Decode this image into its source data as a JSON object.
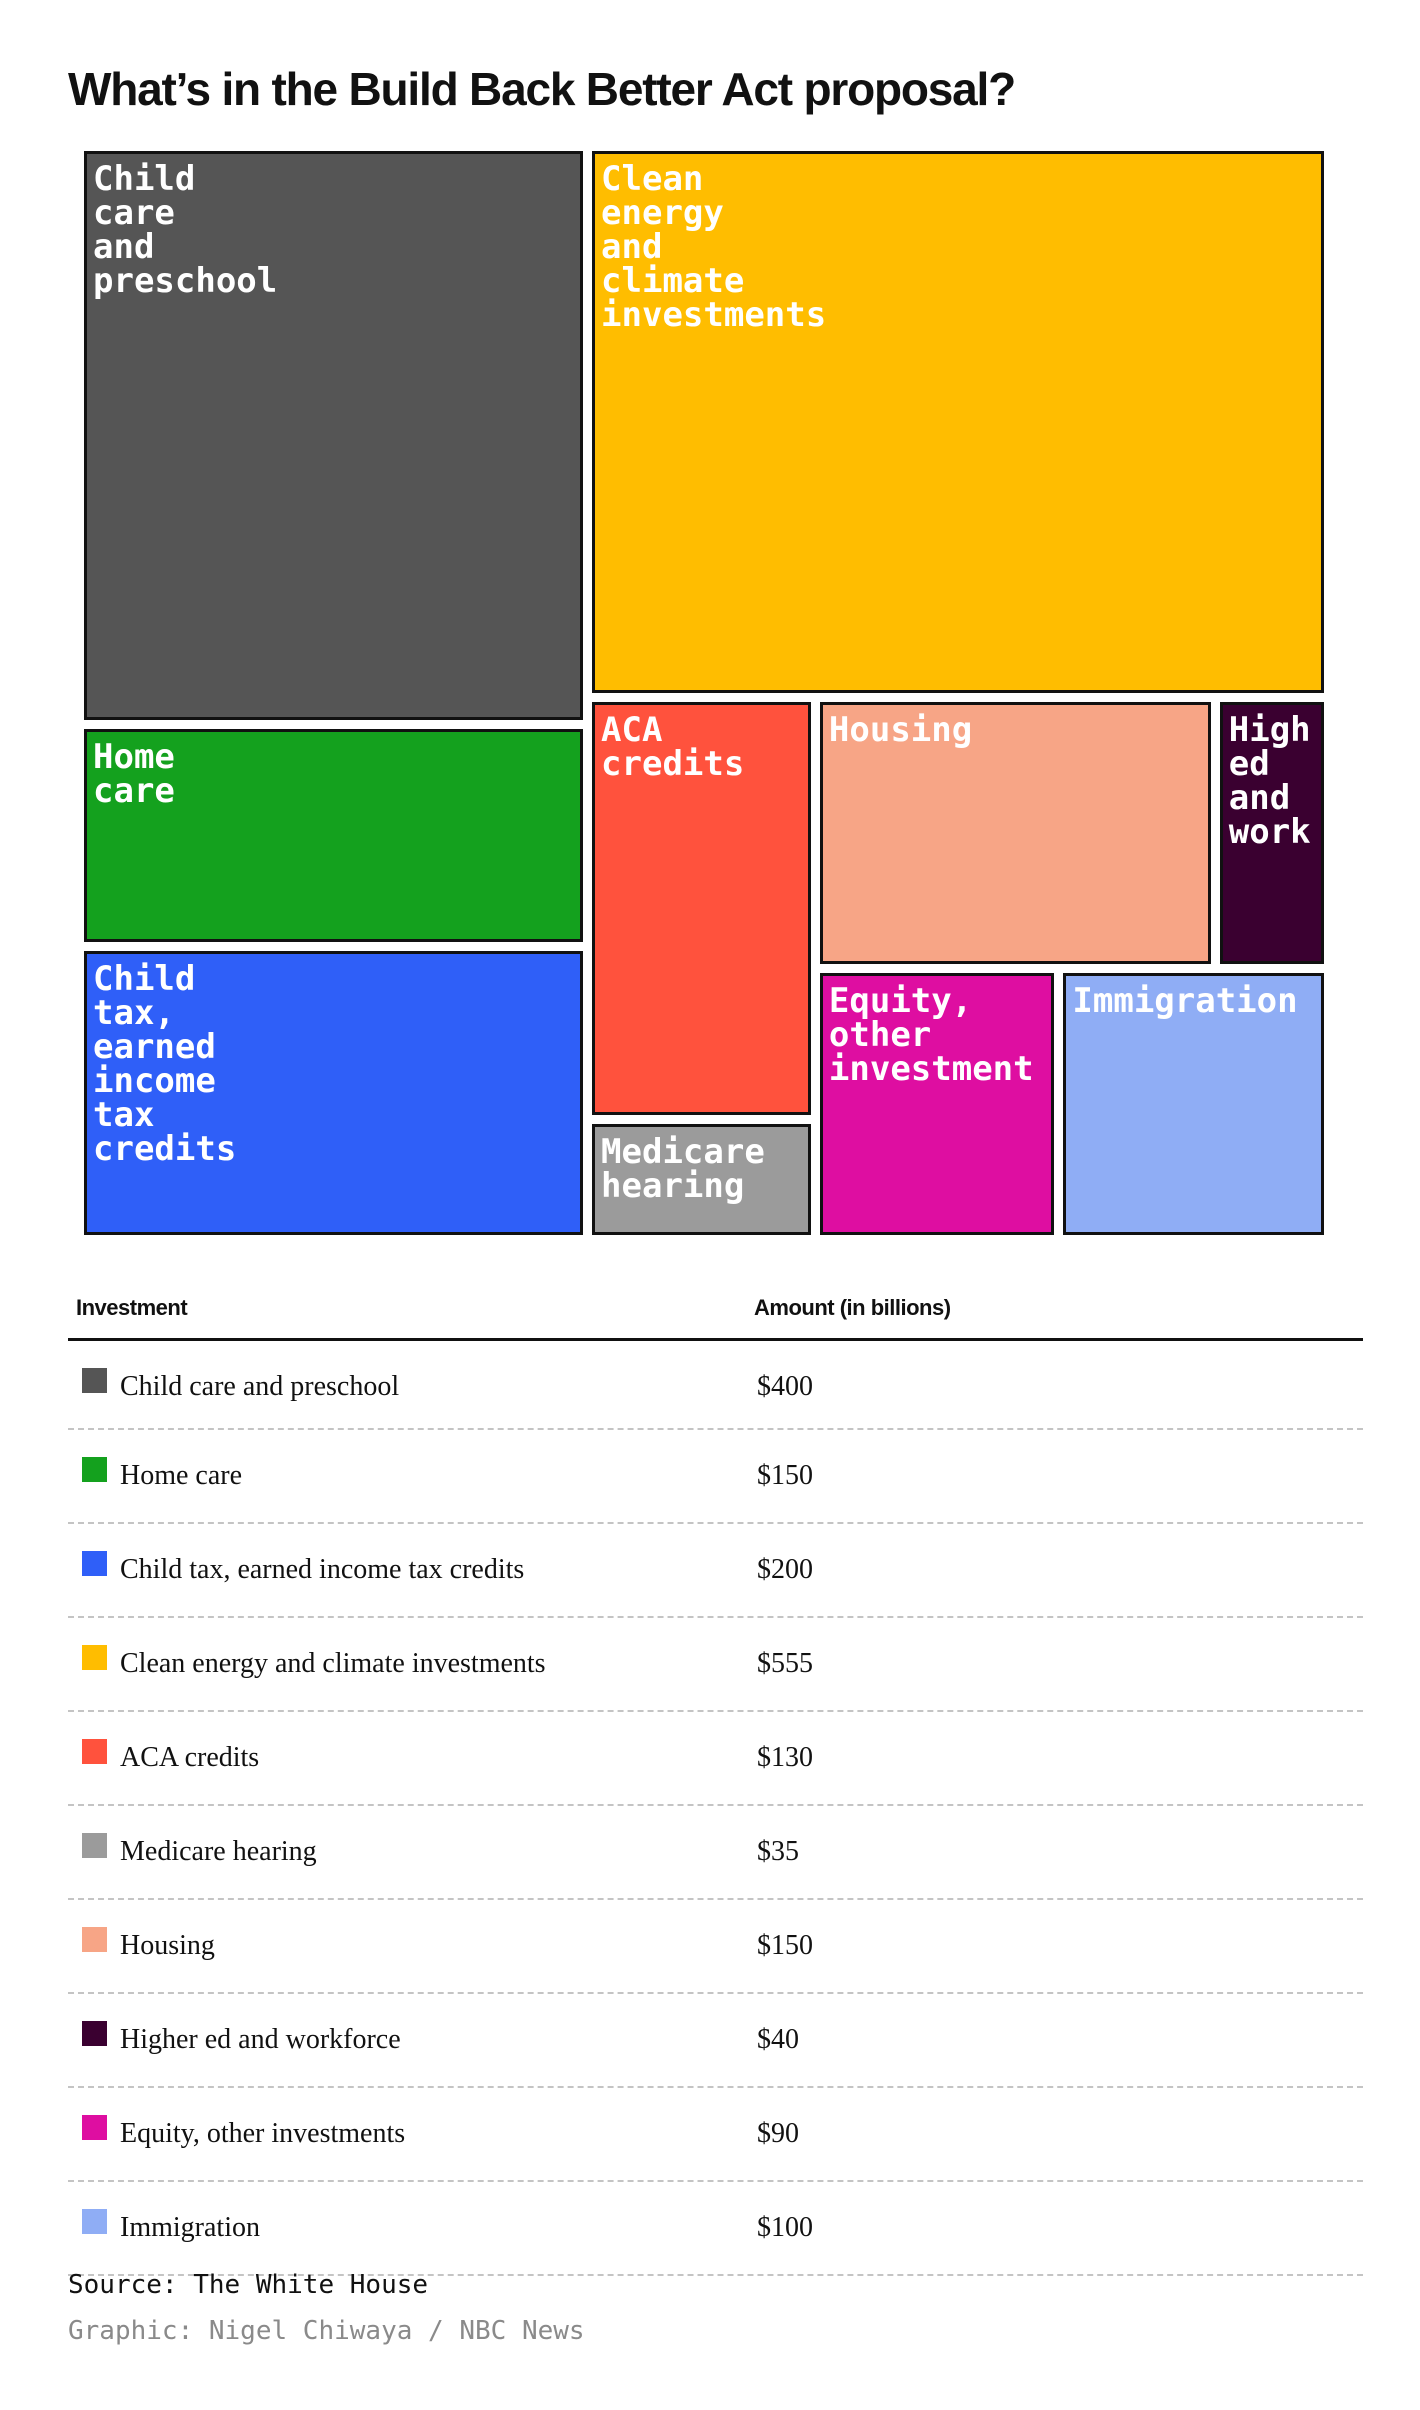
{
  "title": "What’s in the Build Back Better Act proposal?",
  "chart_data": {
    "type": "treemap",
    "categories": [
      "Child care and preschool",
      "Clean energy and climate investments",
      "Home care",
      "Child tax, earned income tax credits",
      "ACA credits",
      "Medicare hearing",
      "Housing",
      "Higher ed and workforce",
      "Equity, other investments",
      "Immigration"
    ],
    "tile_labels": [
      "Child\ncare\nand\npreschool",
      "Clean\nenergy\nand\nclimate\ninvestments",
      "Home\ncare",
      "Child\ntax,\nearned\nincome\ntax\ncredits",
      "ACA\ncredits",
      "Medicare\nhearing",
      "Housing",
      "High\ned\nand\nwork",
      "Equity,\nother\ninvestment",
      "Immigration"
    ],
    "values": [
      400,
      555,
      150,
      200,
      130,
      35,
      150,
      40,
      90,
      100
    ],
    "colors": [
      "#555555",
      "#ffbd00",
      "#14a11e",
      "#2f5ff8",
      "#ff523d",
      "#9b9b9b",
      "#f7a586",
      "#3a0030",
      "#de0ea1",
      "#8fadf5"
    ],
    "unit": "billions"
  },
  "table": {
    "headers": {
      "investment": "Investment",
      "amount": "Amount (in billions)"
    },
    "rows": [
      {
        "label": "Child care and preschool",
        "amount": "$400",
        "color": "#555555"
      },
      {
        "label": "Home care",
        "amount": "$150",
        "color": "#14a11e"
      },
      {
        "label": "Child tax, earned income tax credits",
        "amount": "$200",
        "color": "#2f5ff8"
      },
      {
        "label": "Clean energy and climate investments",
        "amount": "$555",
        "color": "#ffbd00"
      },
      {
        "label": "ACA credits",
        "amount": "$130",
        "color": "#ff523d"
      },
      {
        "label": "Medicare hearing",
        "amount": "$35",
        "color": "#9b9b9b"
      },
      {
        "label": "Housing",
        "amount": "$150",
        "color": "#f7a586"
      },
      {
        "label": "Higher ed and workforce",
        "amount": "$40",
        "color": "#3a0030"
      },
      {
        "label": "Equity, other investments",
        "amount": "$90",
        "color": "#de0ea1"
      },
      {
        "label": "Immigration",
        "amount": "$100",
        "color": "#8fadf5"
      }
    ]
  },
  "source": "Source: The White House",
  "credit": "Graphic: Nigel Chiwaya / NBC News"
}
